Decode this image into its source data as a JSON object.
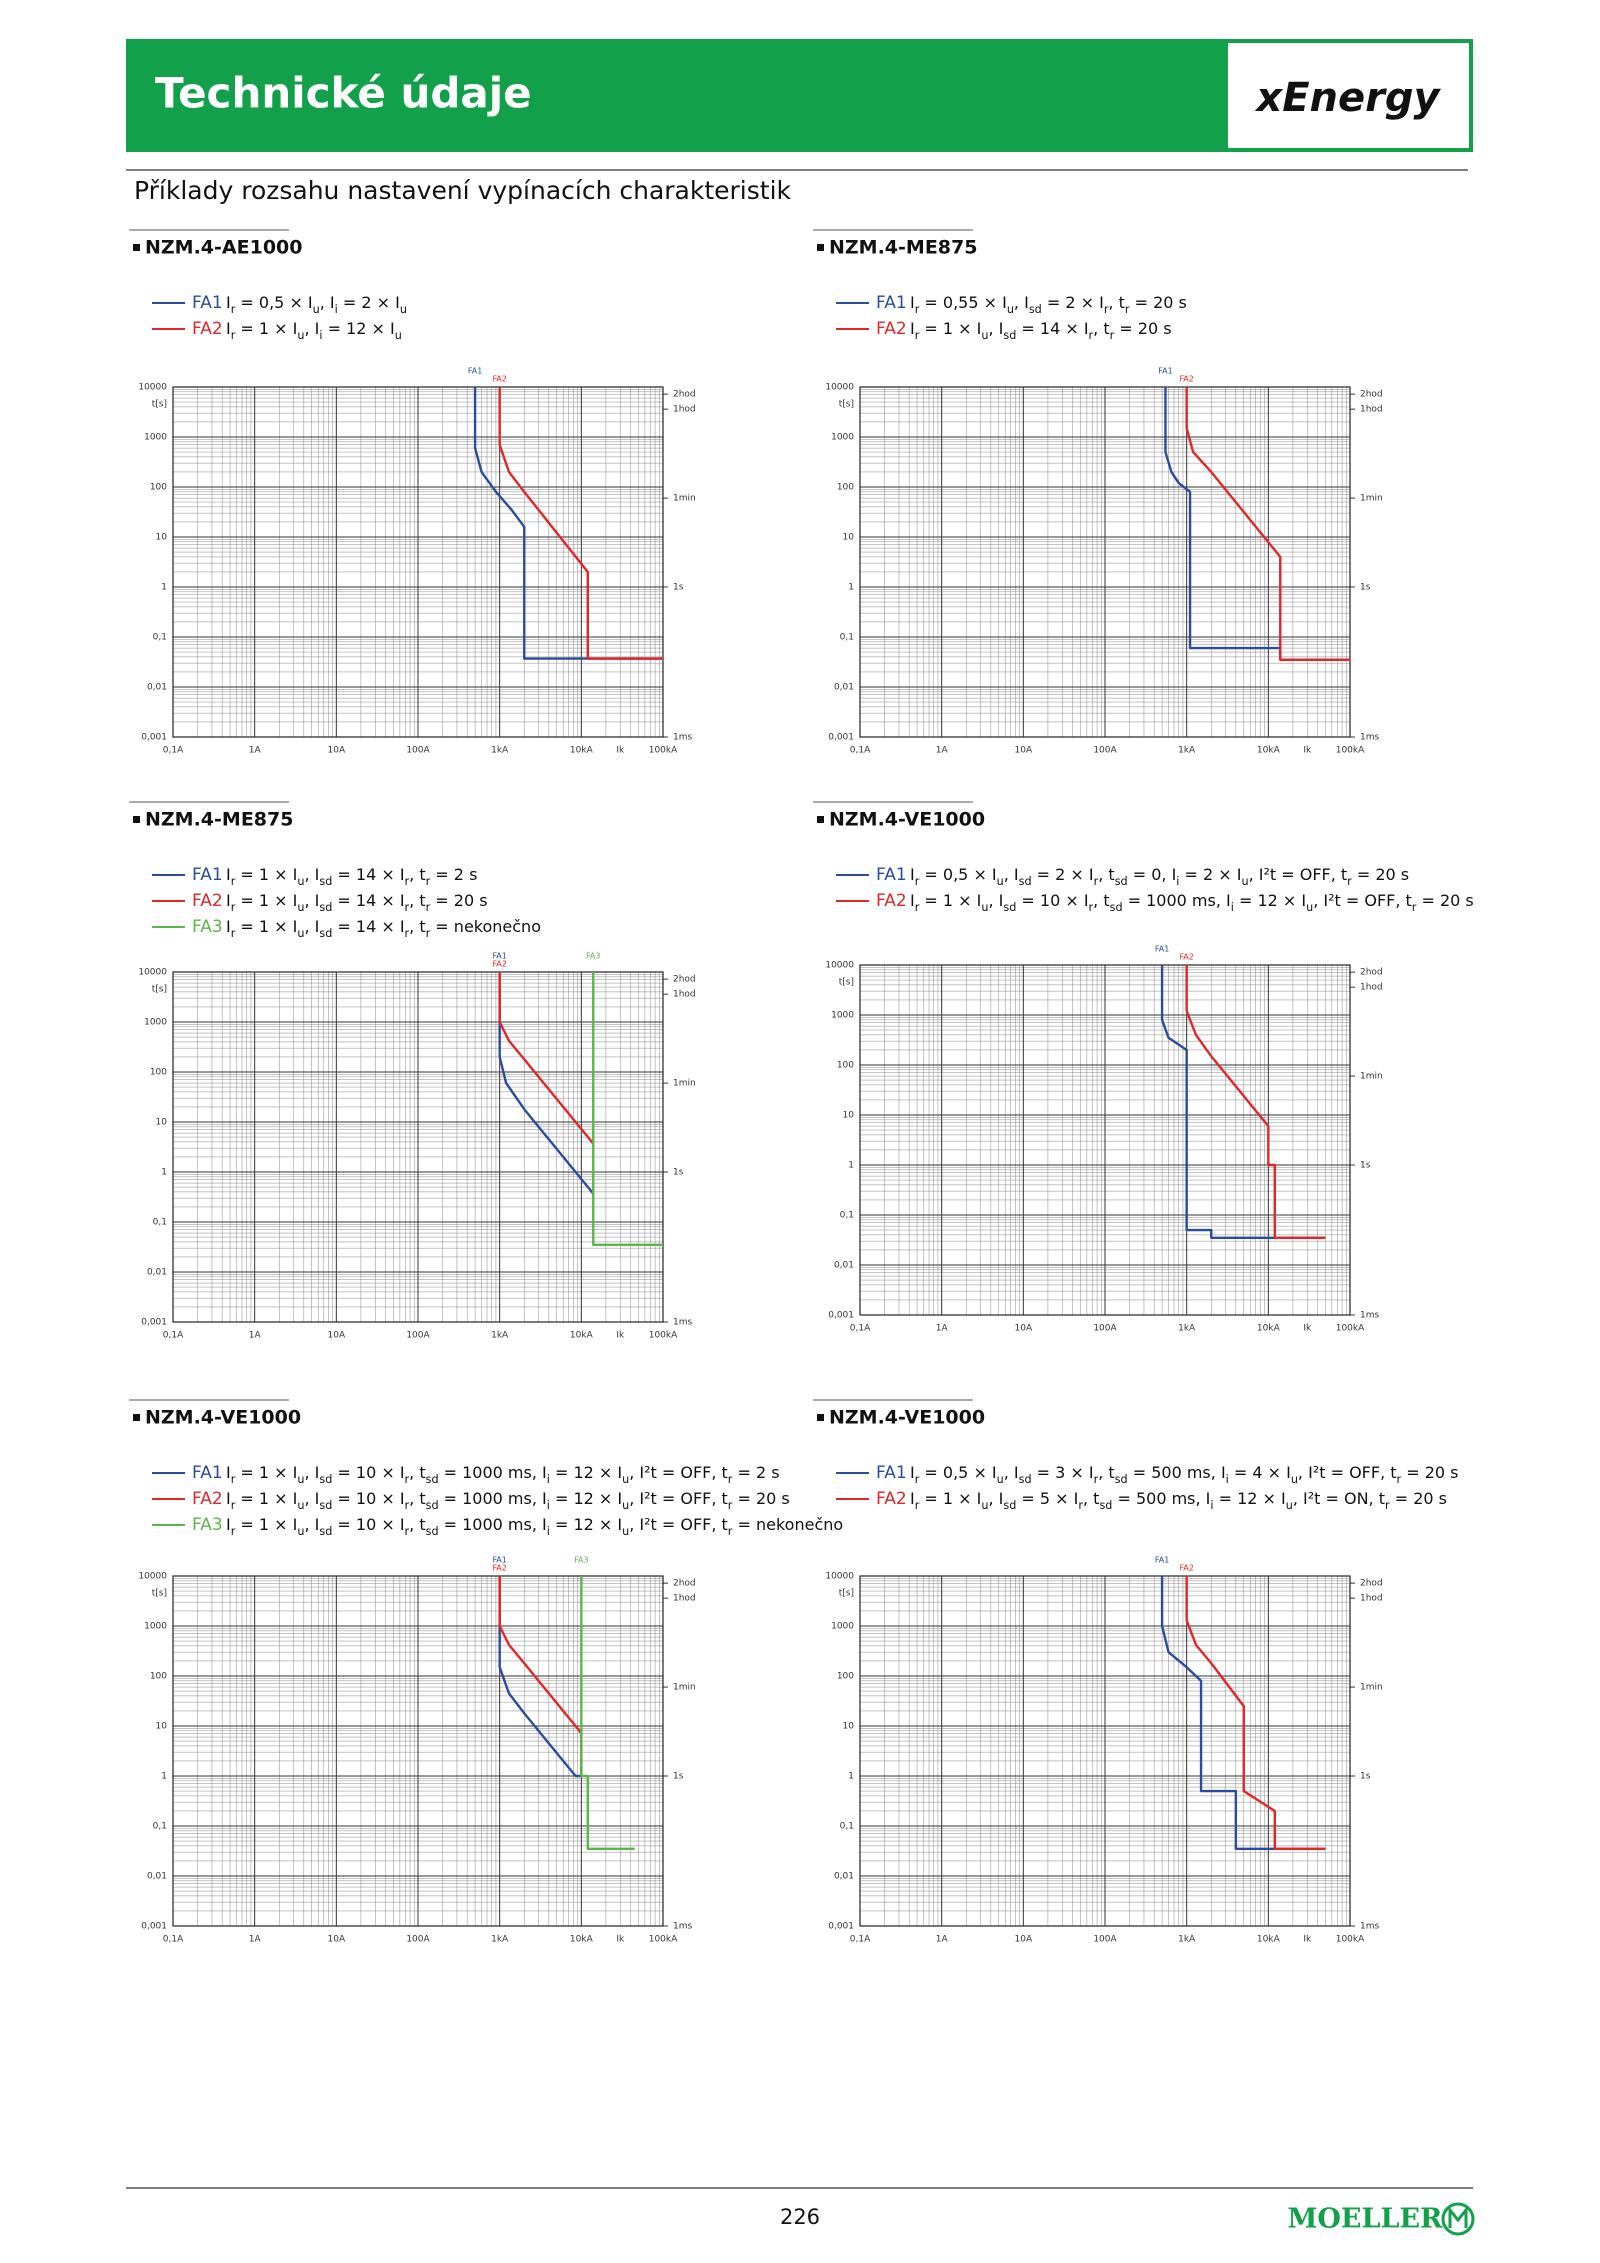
{
  "header": {
    "title": "Technické údaje",
    "logo": "xEnergy"
  },
  "subtitle": "Příklady rozsahu nastavení vypínacích charakteristik",
  "chart_data": [
    {
      "type": "line",
      "title": "NZM.4-AE1000",
      "xscale": "log",
      "yscale": "log",
      "grid": true,
      "xlim": [
        0.1,
        100000
      ],
      "ylim": [
        0.001,
        10000
      ],
      "y2lim": [
        0.001,
        10000
      ],
      "ylabel": "t[s]",
      "xticks": [
        {
          "value": 0.1,
          "label": "0,1A"
        },
        {
          "value": 1,
          "label": "1A"
        },
        {
          "value": 10,
          "label": "10A"
        },
        {
          "value": 100,
          "label": "100A"
        },
        {
          "value": 1000,
          "label": "1kA"
        },
        {
          "value": 10000,
          "label": "10kA"
        },
        {
          "value": 100000,
          "label": "100kA"
        }
      ],
      "yticks": [
        {
          "value": 0.001,
          "label": "0,001"
        },
        {
          "value": 0.01,
          "label": "0,01"
        },
        {
          "value": 0.1,
          "label": "0,1"
        },
        1,
        10,
        100,
        1000,
        10000
      ],
      "y2ticks": [
        {
          "value": 7200,
          "label": "2hod"
        },
        {
          "value": 3600,
          "label": "1hod"
        },
        {
          "value": 60,
          "label": "1min"
        },
        {
          "value": 1,
          "label": "1s"
        },
        {
          "value": 0.001,
          "label": "1ms"
        }
      ],
      "x_annotation": {
        "value": 30000,
        "label": "Ik"
      },
      "series": [
        {
          "name": "FA1",
          "color": "#2b4c9b",
          "description": "Ir = 0,5 × Iu, Ii = 2 × Iu",
          "x": [
            500,
            500,
            600,
            900,
            1400,
            2000,
            2000,
            100000
          ],
          "values": [
            10000,
            600,
            200,
            80,
            35,
            16,
            0.037,
            0.037
          ]
        },
        {
          "name": "FA2",
          "color": "#e0262a",
          "description": "Ir = 1 × Iu, Ii = 12 × Iu",
          "x": [
            1000,
            1000,
            1300,
            2000,
            12000,
            12000,
            100000
          ],
          "values": [
            10000,
            700,
            200,
            80,
            2,
            0.037,
            0.037
          ]
        }
      ]
    },
    {
      "type": "line",
      "title": "NZM.4-ME875",
      "xscale": "log",
      "yscale": "log",
      "grid": true,
      "xlim": [
        0.1,
        100000
      ],
      "ylim": [
        0.001,
        10000
      ],
      "y2lim": [
        0.001,
        10000
      ],
      "ylabel": "t[s]",
      "xticks": [
        {
          "value": 0.1,
          "label": "0,1A"
        },
        {
          "value": 1,
          "label": "1A"
        },
        {
          "value": 10,
          "label": "10A"
        },
        {
          "value": 100,
          "label": "100A"
        },
        {
          "value": 1000,
          "label": "1kA"
        },
        {
          "value": 10000,
          "label": "10kA"
        },
        {
          "value": 100000,
          "label": "100kA"
        }
      ],
      "yticks": [
        {
          "value": 0.001,
          "label": "0,001"
        },
        {
          "value": 0.01,
          "label": "0,01"
        },
        {
          "value": 0.1,
          "label": "0,1"
        },
        1,
        10,
        100,
        1000,
        10000
      ],
      "y2ticks": [
        {
          "value": 7200,
          "label": "2hod"
        },
        {
          "value": 3600,
          "label": "1hod"
        },
        {
          "value": 60,
          "label": "1min"
        },
        {
          "value": 1,
          "label": "1s"
        },
        {
          "value": 0.001,
          "label": "1ms"
        }
      ],
      "x_annotation": {
        "value": 30000,
        "label": "Ik"
      },
      "series": [
        {
          "name": "FA1",
          "color": "#2b4c9b",
          "description": "Ir = 0,55 × Iu, Isd = 2 × Ir, tr = 20 s",
          "x": [
            550,
            550,
            650,
            800,
            1100,
            1100,
            14000,
            14000,
            100000
          ],
          "values": [
            10000,
            500,
            200,
            120,
            80,
            0.06,
            0.06,
            0.035,
            0.035
          ]
        },
        {
          "name": "FA2",
          "color": "#e0262a",
          "description": "Ir = 1 × Iu, Isd = 14 × Ir, tr = 20 s",
          "x": [
            1000,
            1000,
            1200,
            2000,
            14000,
            14000,
            100000
          ],
          "values": [
            10000,
            1500,
            500,
            200,
            4,
            0.035,
            0.035
          ]
        }
      ]
    },
    {
      "type": "line",
      "title": "NZM.4-ME875",
      "xscale": "log",
      "yscale": "log",
      "grid": true,
      "xlim": [
        0.1,
        100000
      ],
      "ylim": [
        0.001,
        10000
      ],
      "y2lim": [
        0.001,
        10000
      ],
      "ylabel": "t[s]",
      "xticks": [
        {
          "value": 0.1,
          "label": "0,1A"
        },
        {
          "value": 1,
          "label": "1A"
        },
        {
          "value": 10,
          "label": "10A"
        },
        {
          "value": 100,
          "label": "100A"
        },
        {
          "value": 1000,
          "label": "1kA"
        },
        {
          "value": 10000,
          "label": "10kA"
        },
        {
          "value": 100000,
          "label": "100kA"
        }
      ],
      "yticks": [
        {
          "value": 0.001,
          "label": "0,001"
        },
        {
          "value": 0.01,
          "label": "0,01"
        },
        {
          "value": 0.1,
          "label": "0,1"
        },
        1,
        10,
        100,
        1000,
        10000
      ],
      "y2ticks": [
        {
          "value": 7200,
          "label": "2hod"
        },
        {
          "value": 3600,
          "label": "1hod"
        },
        {
          "value": 60,
          "label": "1min"
        },
        {
          "value": 1,
          "label": "1s"
        },
        {
          "value": 0.001,
          "label": "1ms"
        }
      ],
      "x_annotation": {
        "value": 30000,
        "label": "Ik"
      },
      "series": [
        {
          "name": "FA1",
          "color": "#2b4c9b",
          "description": "Ir = 1 × Iu, Isd = 14 × Ir, tr = 2 s",
          "x": [
            1000,
            1000,
            1200,
            2000,
            4000,
            14000
          ],
          "values": [
            10000,
            200,
            60,
            18,
            4.5,
            0.37
          ]
        },
        {
          "name": "FA2",
          "color": "#e0262a",
          "description": "Ir = 1 × Iu, Isd = 14 × Ir, tr = 20 s",
          "x": [
            1000,
            1000,
            1300,
            2000,
            4000,
            14000
          ],
          "values": [
            10000,
            1000,
            420,
            180,
            45,
            3.7
          ]
        },
        {
          "name": "FA3",
          "color": "#5bb54a",
          "description": "Ir = 1 × Iu, Isd = 14 × Ir, tr = nekonečno",
          "x": [
            14000,
            14000,
            100000
          ],
          "values": [
            10000,
            0.035,
            0.035
          ]
        }
      ]
    },
    {
      "type": "line",
      "title": "NZM.4-VE1000",
      "xscale": "log",
      "yscale": "log",
      "grid": true,
      "xlim": [
        0.1,
        100000
      ],
      "ylim": [
        0.001,
        10000
      ],
      "y2lim": [
        0.001,
        10000
      ],
      "ylabel": "t[s]",
      "xticks": [
        {
          "value": 0.1,
          "label": "0,1A"
        },
        {
          "value": 1,
          "label": "1A"
        },
        {
          "value": 10,
          "label": "10A"
        },
        {
          "value": 100,
          "label": "100A"
        },
        {
          "value": 1000,
          "label": "1kA"
        },
        {
          "value": 10000,
          "label": "10kA"
        },
        {
          "value": 100000,
          "label": "100kA"
        }
      ],
      "yticks": [
        {
          "value": 0.001,
          "label": "0,001"
        },
        {
          "value": 0.01,
          "label": "0,01"
        },
        {
          "value": 0.1,
          "label": "0,1"
        },
        1,
        10,
        100,
        1000,
        10000
      ],
      "y2ticks": [
        {
          "value": 7200,
          "label": "2hod"
        },
        {
          "value": 3600,
          "label": "1hod"
        },
        {
          "value": 60,
          "label": "1min"
        },
        {
          "value": 1,
          "label": "1s"
        },
        {
          "value": 0.001,
          "label": "1ms"
        }
      ],
      "x_annotation": {
        "value": 30000,
        "label": "Ik"
      },
      "series": [
        {
          "name": "FA1",
          "color": "#2b4c9b",
          "description": "Ir = 0,5 × Iu, Isd = 2 × Ir, tsd = 0, Ii = 2 × Iu, I²t = OFF, tr = 20 s",
          "x": [
            500,
            500,
            600,
            1000,
            1000,
            2000,
            2000,
            50000
          ],
          "values": [
            10000,
            800,
            350,
            200,
            0.05,
            0.05,
            0.035,
            0.035
          ]
        },
        {
          "name": "FA2",
          "color": "#e0262a",
          "description": "Ir = 1 × Iu, Isd = 10 × Ir, tsd = 1000 ms, Ii = 12 × Iu, I²t = OFF, tr = 20 s",
          "x": [
            1000,
            1000,
            1300,
            2000,
            10000,
            10000,
            12000,
            12000,
            50000
          ],
          "values": [
            10000,
            1200,
            400,
            150,
            6,
            1,
            1,
            0.035,
            0.035
          ]
        }
      ]
    },
    {
      "type": "line",
      "title": "NZM.4-VE1000",
      "xscale": "log",
      "yscale": "log",
      "grid": true,
      "xlim": [
        0.1,
        100000
      ],
      "ylim": [
        0.001,
        10000
      ],
      "y2lim": [
        0.001,
        10000
      ],
      "ylabel": "t[s]",
      "xticks": [
        {
          "value": 0.1,
          "label": "0,1A"
        },
        {
          "value": 1,
          "label": "1A"
        },
        {
          "value": 10,
          "label": "10A"
        },
        {
          "value": 100,
          "label": "100A"
        },
        {
          "value": 1000,
          "label": "1kA"
        },
        {
          "value": 10000,
          "label": "10kA"
        },
        {
          "value": 100000,
          "label": "100kA"
        }
      ],
      "yticks": [
        {
          "value": 0.001,
          "label": "0,001"
        },
        {
          "value": 0.01,
          "label": "0,01"
        },
        {
          "value": 0.1,
          "label": "0,1"
        },
        1,
        10,
        100,
        1000,
        10000
      ],
      "y2ticks": [
        {
          "value": 7200,
          "label": "2hod"
        },
        {
          "value": 3600,
          "label": "1hod"
        },
        {
          "value": 60,
          "label": "1min"
        },
        {
          "value": 1,
          "label": "1s"
        },
        {
          "value": 0.001,
          "label": "1ms"
        }
      ],
      "x_annotation": {
        "value": 30000,
        "label": "Ik"
      },
      "series": [
        {
          "name": "FA1",
          "color": "#2b4c9b",
          "description": "Ir = 1 × Iu, Isd = 10 × Ir, tsd = 1000 ms, Ii = 12 × Iu, I²t = OFF, tr = 2 s",
          "x": [
            1000,
            1000,
            1300,
            2000,
            4000,
            8500,
            10000
          ],
          "values": [
            10000,
            150,
            45,
            18,
            4.5,
            1,
            1
          ]
        },
        {
          "name": "FA2",
          "color": "#e0262a",
          "description": "Ir = 1 × Iu, Isd = 10 × Ir, tsd = 1000 ms, Ii = 12 × Iu, I²t = OFF, tr = 20 s",
          "x": [
            1000,
            1000,
            1300,
            2000,
            4000,
            10000,
            10000
          ],
          "values": [
            10000,
            1000,
            420,
            180,
            45,
            7.2,
            1
          ]
        },
        {
          "name": "FA3",
          "color": "#5bb54a",
          "description": "Ir = 1 × Iu, Isd = 10 × Ir, tsd = 1000 ms, Ii = 12 × Iu, I²t = OFF, tr = nekonečno",
          "x": [
            10000,
            10000,
            12000,
            12000,
            45000
          ],
          "values": [
            10000,
            1,
            1,
            0.035,
            0.035
          ]
        }
      ]
    },
    {
      "type": "line",
      "title": "NZM.4-VE1000",
      "xscale": "log",
      "yscale": "log",
      "grid": true,
      "xlim": [
        0.1,
        100000
      ],
      "ylim": [
        0.001,
        10000
      ],
      "y2lim": [
        0.001,
        10000
      ],
      "ylabel": "t[s]",
      "xticks": [
        {
          "value": 0.1,
          "label": "0,1A"
        },
        {
          "value": 1,
          "label": "1A"
        },
        {
          "value": 10,
          "label": "10A"
        },
        {
          "value": 100,
          "label": "100A"
        },
        {
          "value": 1000,
          "label": "1kA"
        },
        {
          "value": 10000,
          "label": "10kA"
        },
        {
          "value": 100000,
          "label": "100kA"
        }
      ],
      "yticks": [
        {
          "value": 0.001,
          "label": "0,001"
        },
        {
          "value": 0.01,
          "label": "0,01"
        },
        {
          "value": 0.1,
          "label": "0,1"
        },
        1,
        10,
        100,
        1000,
        10000
      ],
      "y2ticks": [
        {
          "value": 7200,
          "label": "2hod"
        },
        {
          "value": 3600,
          "label": "1hod"
        },
        {
          "value": 60,
          "label": "1min"
        },
        {
          "value": 1,
          "label": "1s"
        },
        {
          "value": 0.001,
          "label": "1ms"
        }
      ],
      "x_annotation": {
        "value": 30000,
        "label": "Ik"
      },
      "series": [
        {
          "name": "FA1",
          "color": "#2b4c9b",
          "description": "Ir = 0,5 × Iu, Isd = 3 × Ir, tsd = 500 ms, Ii = 4 × Iu, I²t = OFF, tr = 20 s",
          "x": [
            500,
            500,
            600,
            1000,
            1500,
            1500,
            4000,
            4000,
            50000
          ],
          "values": [
            10000,
            1000,
            300,
            150,
            80,
            0.5,
            0.5,
            0.035,
            0.035
          ]
        },
        {
          "name": "FA2",
          "color": "#e0262a",
          "description": "Ir = 1 × Iu, Isd = 5 × Ir, tsd = 500 ms, Ii = 12 × Iu, I²t = ON, tr = 20 s",
          "x": [
            1000,
            1000,
            1300,
            2000,
            5000,
            5000,
            12000,
            12000,
            50000
          ],
          "values": [
            10000,
            1300,
            420,
            180,
            25,
            0.5,
            0.2,
            0.035,
            0.035
          ]
        }
      ]
    }
  ],
  "footer": {
    "page": "226",
    "brand": "MOELLER"
  }
}
